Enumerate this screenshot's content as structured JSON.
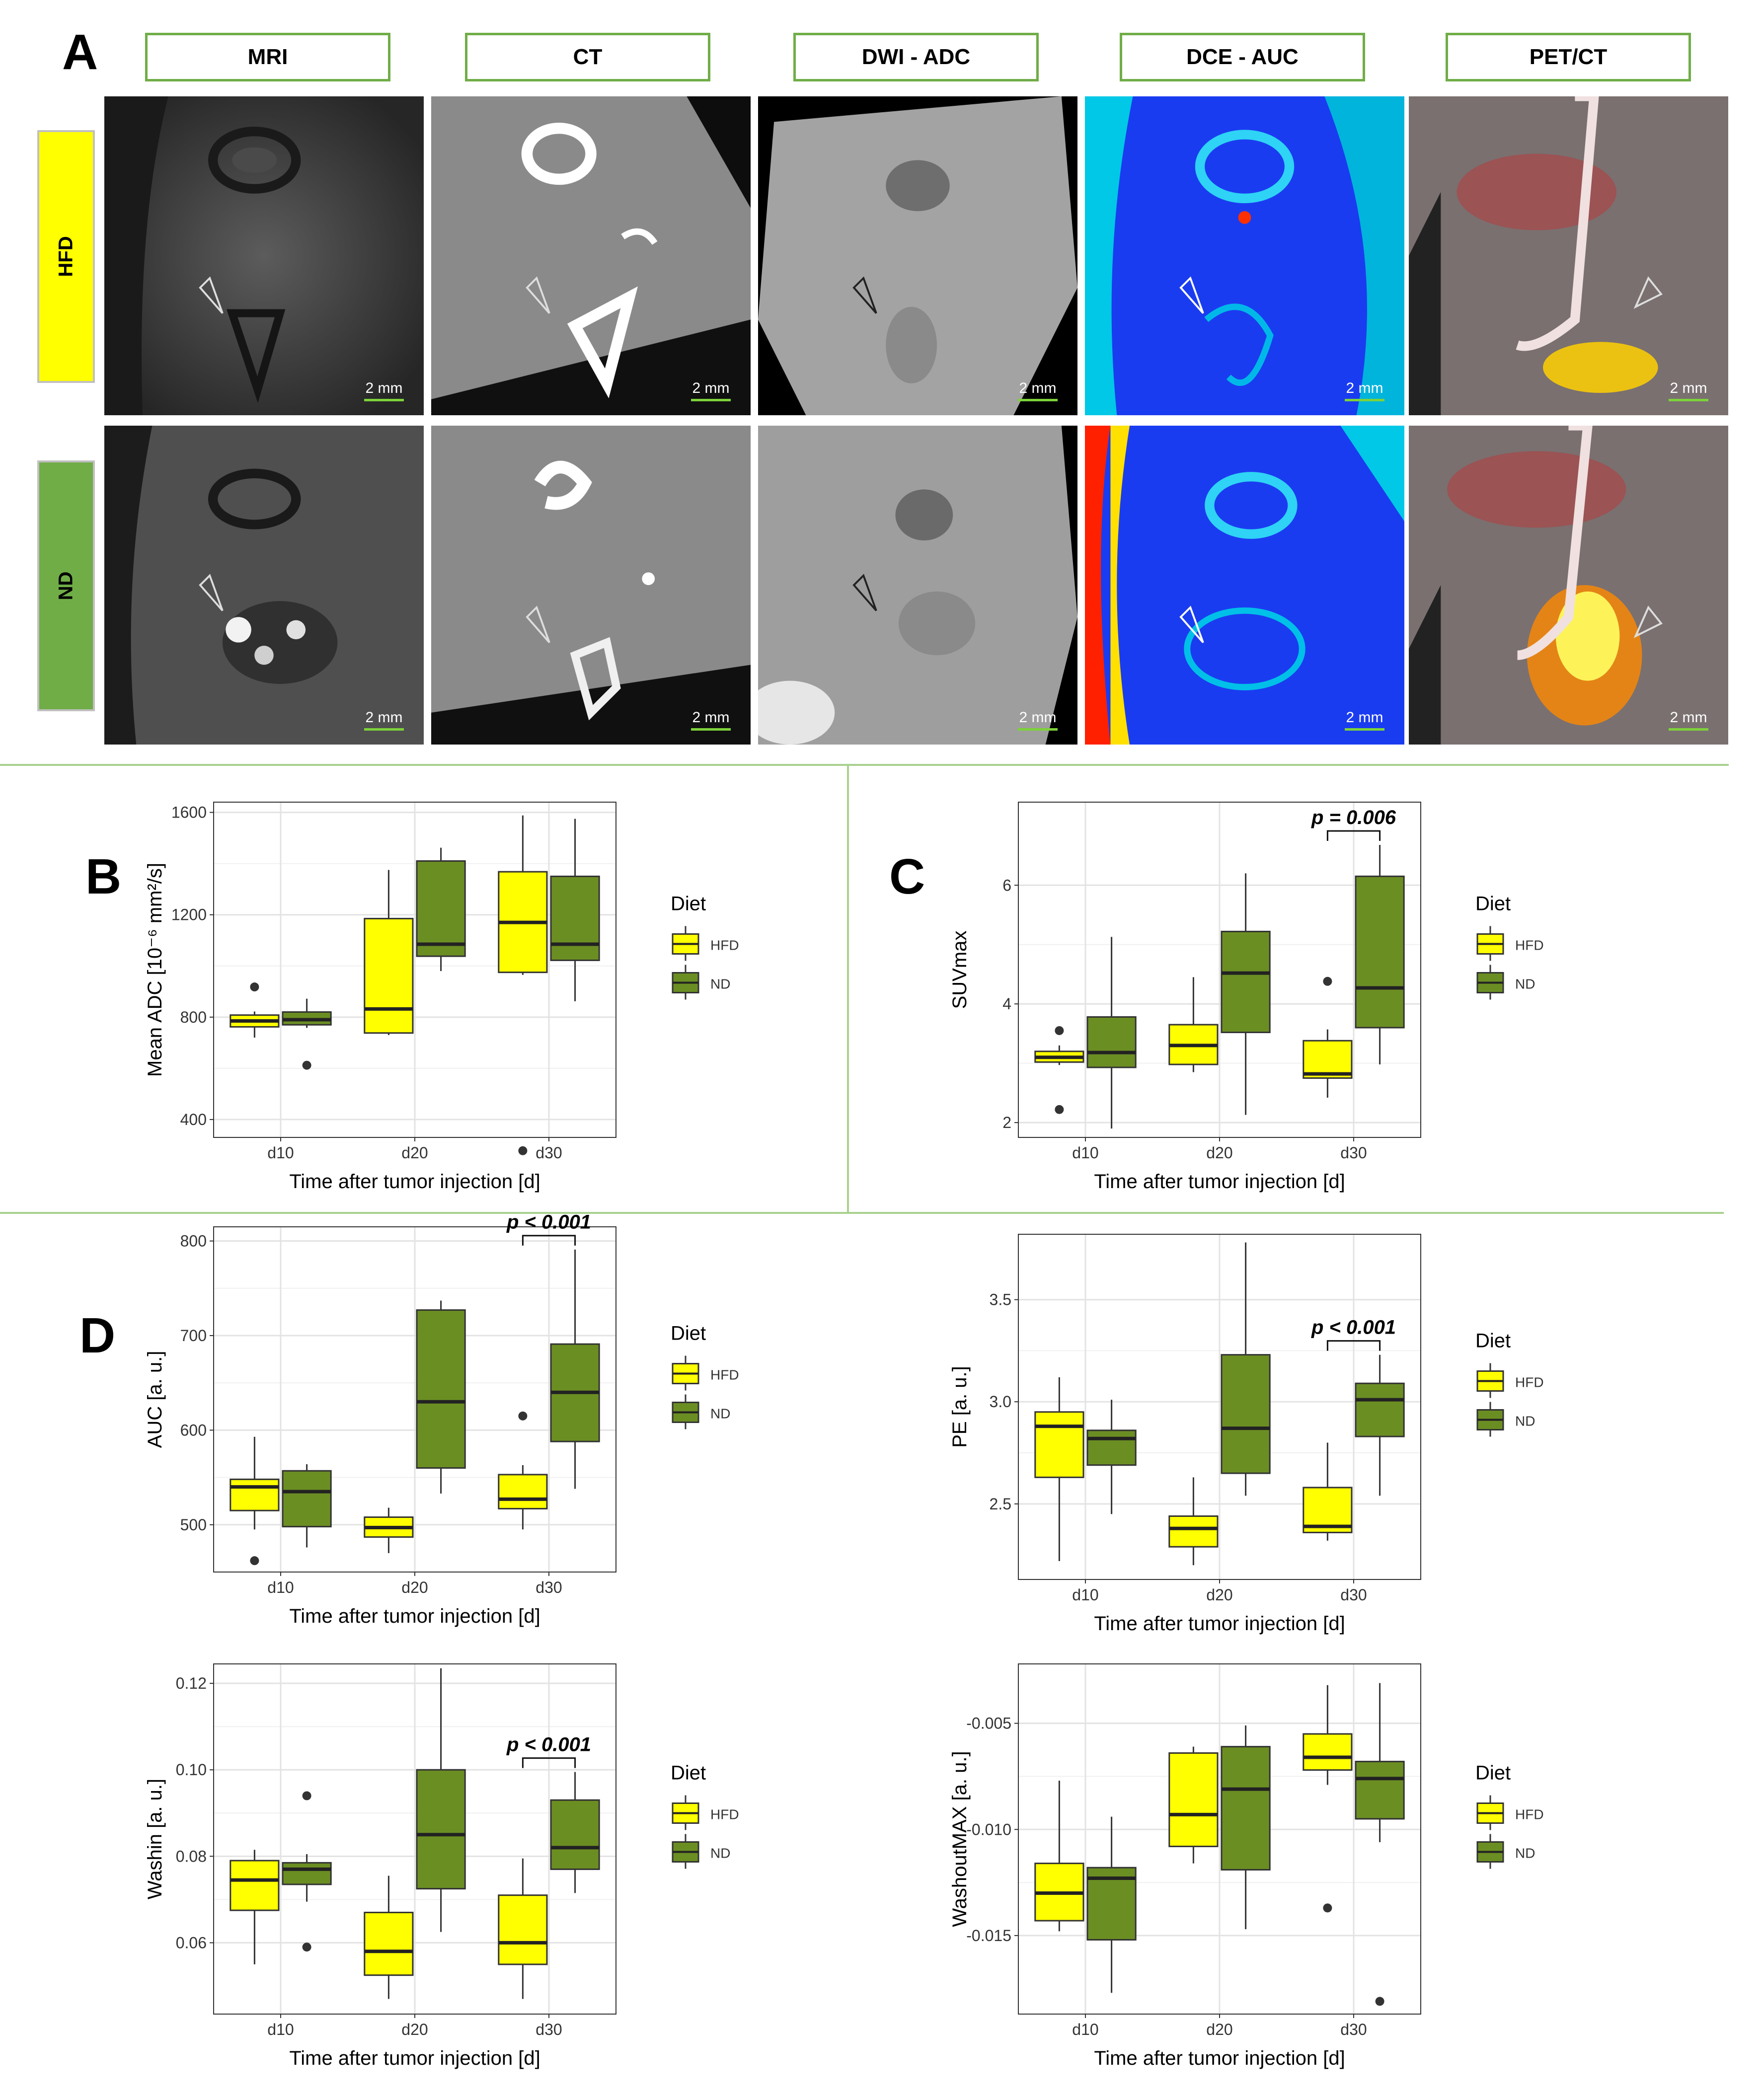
{
  "panel_labels": {
    "a": "A",
    "b": "B",
    "c": "C",
    "d": "D"
  },
  "imaging": {
    "columns": [
      "MRI",
      "CT",
      "DWI - ADC",
      "DCE - AUC",
      "PET/CT"
    ],
    "rows": [
      "HFD",
      "ND"
    ],
    "row_colors": [
      "#ffff00",
      "#70ad47"
    ],
    "scale_label": "2 mm"
  },
  "legend": {
    "title": "Diet",
    "items": [
      "HFD",
      "ND"
    ],
    "colors": [
      "#ffff00",
      "#6b8e23"
    ]
  },
  "chart_data": [
    {
      "id": "B",
      "type": "box",
      "xlabel": "Time after tumor injection [d]",
      "ylabel": "Mean ADC [10⁻⁶ mm²/s]",
      "categories": [
        "d10",
        "d20",
        "d30"
      ],
      "ylim": [
        330,
        1640
      ],
      "yticks": [
        400,
        800,
        1200,
        1600
      ],
      "yticklabels": [
        "400",
        "800",
        "1200",
        "1600"
      ],
      "series": [
        {
          "name": "HFD",
          "boxes": [
            {
              "low": 720,
              "q1": 762,
              "median": 785,
              "q3": 808,
              "high": 822,
              "outliers": [
                918
              ]
            },
            {
              "low": 730,
              "q1": 738,
              "median": 832,
              "q3": 1185,
              "high": 1375,
              "outliers": []
            },
            {
              "low": 965,
              "q1": 975,
              "median": 1170,
              "q3": 1368,
              "high": 1588,
              "outliers": [
                278
              ]
            }
          ]
        },
        {
          "name": "ND",
          "boxes": [
            {
              "low": 758,
              "q1": 770,
              "median": 790,
              "q3": 820,
              "high": 872,
              "outliers": [
                612
              ]
            },
            {
              "low": 980,
              "q1": 1038,
              "median": 1085,
              "q3": 1410,
              "high": 1462,
              "outliers": []
            },
            {
              "low": 862,
              "q1": 1022,
              "median": 1085,
              "q3": 1350,
              "high": 1575,
              "outliers": []
            }
          ]
        }
      ]
    },
    {
      "id": "C",
      "type": "box",
      "xlabel": "Time after tumor injection [d]",
      "ylabel": "SUVmax",
      "categories": [
        "d10",
        "d20",
        "d30"
      ],
      "ylim": [
        1.75,
        7.4
      ],
      "yticks": [
        2,
        4,
        6
      ],
      "yticklabels": [
        "2",
        "4",
        "6"
      ],
      "annotation": {
        "text": "p = 0.006",
        "category": 2
      },
      "series": [
        {
          "name": "HFD",
          "boxes": [
            {
              "low": 2.97,
              "q1": 3.02,
              "median": 3.1,
              "q3": 3.2,
              "high": 3.3,
              "outliers": [
                3.55,
                2.22
              ]
            },
            {
              "low": 2.85,
              "q1": 2.98,
              "median": 3.3,
              "q3": 3.65,
              "high": 4.45,
              "outliers": []
            },
            {
              "low": 2.42,
              "q1": 2.75,
              "median": 2.82,
              "q3": 3.38,
              "high": 3.57,
              "outliers": [
                4.38
              ]
            }
          ]
        },
        {
          "name": "ND",
          "boxes": [
            {
              "low": 1.9,
              "q1": 2.93,
              "median": 3.18,
              "q3": 3.78,
              "high": 5.13,
              "outliers": []
            },
            {
              "low": 2.13,
              "q1": 3.52,
              "median": 4.52,
              "q3": 5.22,
              "high": 6.2,
              "outliers": []
            },
            {
              "low": 2.98,
              "q1": 3.6,
              "median": 4.27,
              "q3": 6.15,
              "high": 6.68,
              "outliers": []
            }
          ]
        }
      ]
    },
    {
      "id": "D1",
      "type": "box",
      "xlabel": "Time after tumor injection [d]",
      "ylabel": "AUC [a. u.]",
      "categories": [
        "d10",
        "d20",
        "d30"
      ],
      "ylim": [
        450,
        815
      ],
      "yticks": [
        500,
        600,
        700,
        800
      ],
      "yticklabels": [
        "500",
        "600",
        "700",
        "800"
      ],
      "annotation": {
        "text": "p < 0.001",
        "category": 2
      },
      "series": [
        {
          "name": "HFD",
          "boxes": [
            {
              "low": 495,
              "q1": 515,
              "median": 540,
              "q3": 548,
              "high": 593,
              "outliers": [
                462
              ]
            },
            {
              "low": 470,
              "q1": 487,
              "median": 497,
              "q3": 508,
              "high": 518,
              "outliers": []
            },
            {
              "low": 495,
              "q1": 517,
              "median": 527,
              "q3": 553,
              "high": 563,
              "outliers": [
                615
              ]
            }
          ]
        },
        {
          "name": "ND",
          "boxes": [
            {
              "low": 476,
              "q1": 498,
              "median": 535,
              "q3": 557,
              "high": 564,
              "outliers": []
            },
            {
              "low": 533,
              "q1": 560,
              "median": 630,
              "q3": 727,
              "high": 737,
              "outliers": []
            },
            {
              "low": 538,
              "q1": 588,
              "median": 640,
              "q3": 691,
              "high": 791,
              "outliers": []
            }
          ]
        }
      ]
    },
    {
      "id": "D2",
      "type": "box",
      "xlabel": "Time after tumor injection [d]",
      "ylabel": "PE [a. u.]",
      "categories": [
        "d10",
        "d20",
        "d30"
      ],
      "ylim": [
        2.13,
        3.82
      ],
      "yticks": [
        2.5,
        3.0,
        3.5
      ],
      "yticklabels": [
        "2.5",
        "3.0",
        "3.5"
      ],
      "annotation": {
        "text": "p < 0.001",
        "category": 2
      },
      "series": [
        {
          "name": "HFD",
          "boxes": [
            {
              "low": 2.22,
              "q1": 2.63,
              "median": 2.88,
              "q3": 2.95,
              "high": 3.12,
              "outliers": []
            },
            {
              "low": 2.2,
              "q1": 2.29,
              "median": 2.38,
              "q3": 2.44,
              "high": 2.63,
              "outliers": []
            },
            {
              "low": 2.32,
              "q1": 2.36,
              "median": 2.39,
              "q3": 2.58,
              "high": 2.8,
              "outliers": []
            }
          ]
        },
        {
          "name": "ND",
          "boxes": [
            {
              "low": 2.45,
              "q1": 2.69,
              "median": 2.82,
              "q3": 2.86,
              "high": 3.01,
              "outliers": []
            },
            {
              "low": 2.54,
              "q1": 2.65,
              "median": 2.87,
              "q3": 3.23,
              "high": 3.78,
              "outliers": []
            },
            {
              "low": 2.54,
              "q1": 2.83,
              "median": 3.01,
              "q3": 3.09,
              "high": 3.23,
              "outliers": []
            }
          ]
        }
      ]
    },
    {
      "id": "D3",
      "type": "box",
      "xlabel": "Time after tumor injection [d]",
      "ylabel": "Washin [a. u.]",
      "categories": [
        "d10",
        "d20",
        "d30"
      ],
      "ylim": [
        0.0435,
        0.1245
      ],
      "yticks": [
        0.06,
        0.08,
        0.1,
        0.12
      ],
      "yticklabels": [
        "0.06",
        "0.08",
        "0.10",
        "0.12"
      ],
      "annotation": {
        "text": "p < 0.001",
        "category": 2
      },
      "series": [
        {
          "name": "HFD",
          "boxes": [
            {
              "low": 0.055,
              "q1": 0.0675,
              "median": 0.0745,
              "q3": 0.079,
              "high": 0.0815,
              "outliers": []
            },
            {
              "low": 0.047,
              "q1": 0.0525,
              "median": 0.058,
              "q3": 0.067,
              "high": 0.0755,
              "outliers": []
            },
            {
              "low": 0.047,
              "q1": 0.055,
              "median": 0.06,
              "q3": 0.071,
              "high": 0.0795,
              "outliers": []
            }
          ]
        },
        {
          "name": "ND",
          "boxes": [
            {
              "low": 0.0695,
              "q1": 0.0735,
              "median": 0.077,
              "q3": 0.0785,
              "high": 0.0805,
              "outliers": [
                0.094,
                0.059
              ]
            },
            {
              "low": 0.0625,
              "q1": 0.0725,
              "median": 0.085,
              "q3": 0.1,
              "high": 0.1235,
              "outliers": []
            },
            {
              "low": 0.0715,
              "q1": 0.077,
              "median": 0.082,
              "q3": 0.093,
              "high": 0.0995,
              "outliers": []
            }
          ]
        }
      ]
    },
    {
      "id": "D4",
      "type": "box",
      "xlabel": "Time after tumor injection [d]",
      "ylabel": "WashoutMAX [a. u.]",
      "categories": [
        "d10",
        "d20",
        "d30"
      ],
      "ylim": [
        -0.0187,
        -0.0022
      ],
      "yticks": [
        -0.015,
        -0.01,
        -0.005
      ],
      "yticklabels": [
        "-0.015",
        "-0.010",
        "-0.005"
      ],
      "series": [
        {
          "name": "HFD",
          "boxes": [
            {
              "low": -0.0148,
              "q1": -0.0143,
              "median": -0.013,
              "q3": -0.0116,
              "high": -0.0077,
              "outliers": []
            },
            {
              "low": -0.0116,
              "q1": -0.0108,
              "median": -0.0093,
              "q3": -0.0064,
              "high": -0.0061,
              "outliers": []
            },
            {
              "low": -0.0079,
              "q1": -0.0072,
              "median": -0.0066,
              "q3": -0.0055,
              "high": -0.0032,
              "outliers": [
                -0.0137
              ]
            }
          ]
        },
        {
          "name": "ND",
          "boxes": [
            {
              "low": -0.0177,
              "q1": -0.0152,
              "median": -0.0123,
              "q3": -0.0118,
              "high": -0.0094,
              "outliers": []
            },
            {
              "low": -0.0147,
              "q1": -0.0119,
              "median": -0.0081,
              "q3": -0.0061,
              "high": -0.0051,
              "outliers": []
            },
            {
              "low": -0.0106,
              "q1": -0.0095,
              "median": -0.0076,
              "q3": -0.0068,
              "high": -0.0031,
              "outliers": [
                -0.0181
              ]
            }
          ]
        }
      ]
    }
  ]
}
